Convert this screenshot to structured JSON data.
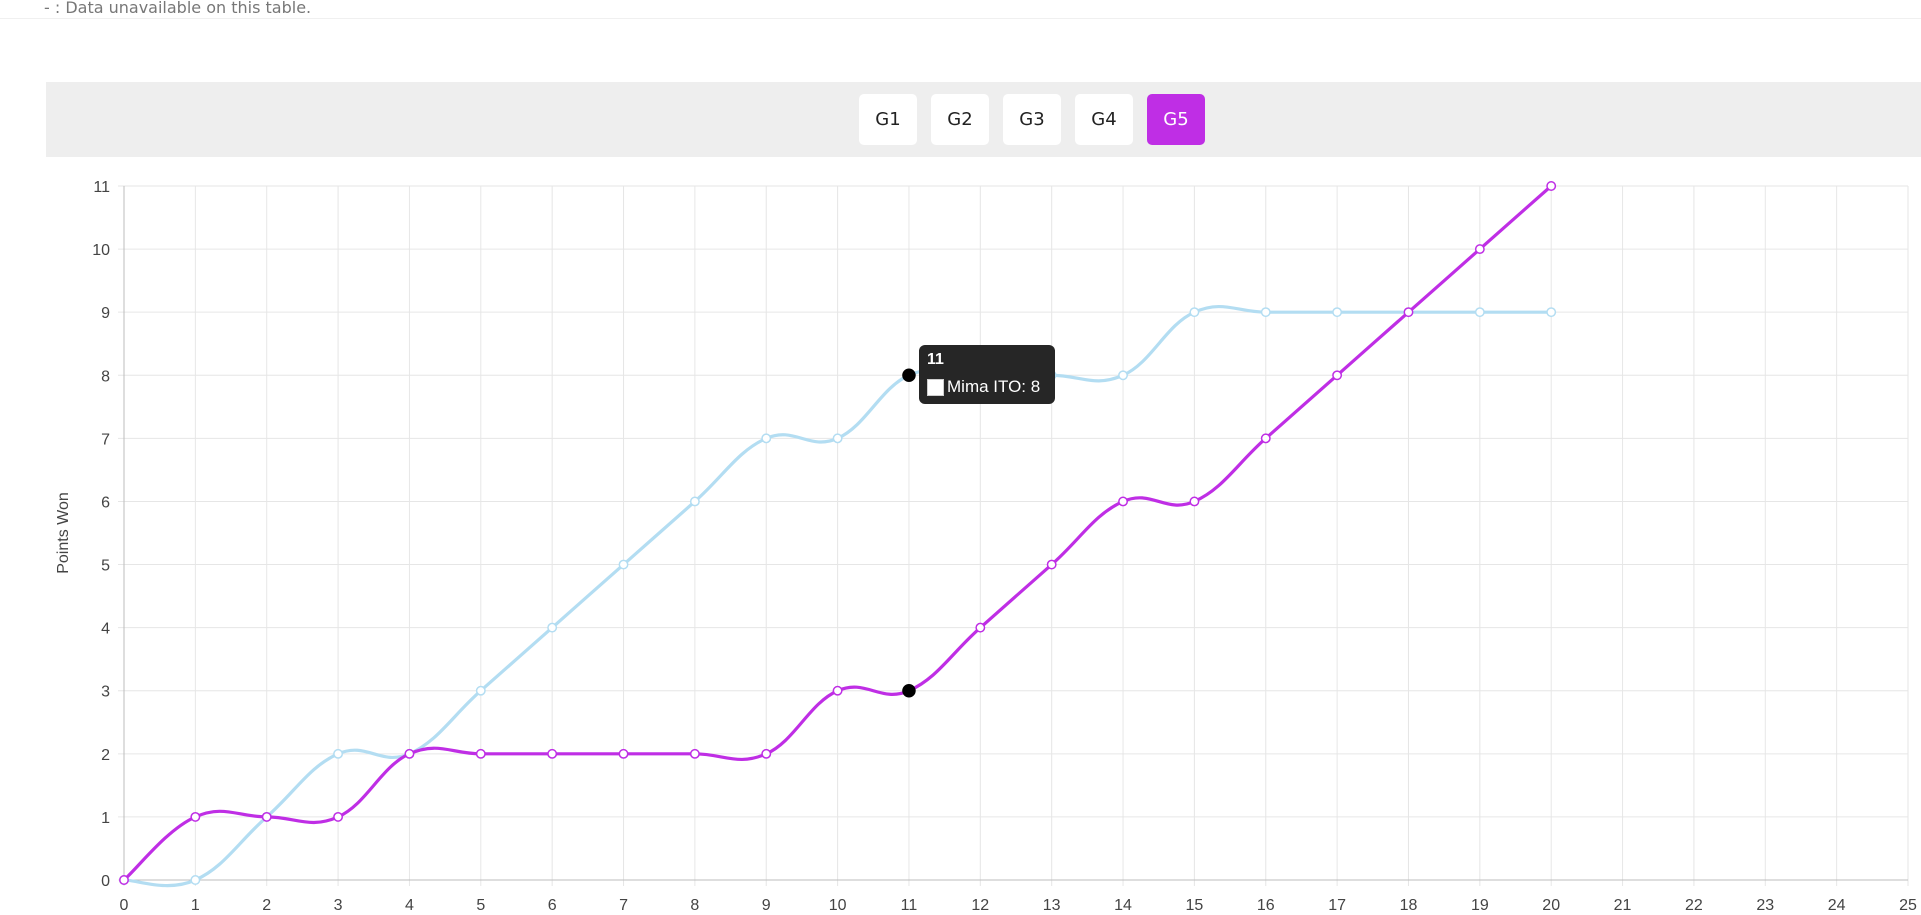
{
  "note": {
    "text": "- : Data unavailable on this table."
  },
  "games": {
    "tabs": [
      "G1",
      "G2",
      "G3",
      "G4",
      "G5"
    ],
    "active_index": 4,
    "active_color": "#bf2ee5"
  },
  "tooltip": {
    "title": "11",
    "label": "Mima ITO: 8"
  },
  "chart_data": {
    "type": "line",
    "ylabel": "Points Won",
    "xlabel": "",
    "xlim": [
      0,
      25
    ],
    "ylim": [
      0,
      11
    ],
    "x_ticks": [
      0,
      1,
      2,
      3,
      4,
      5,
      6,
      7,
      8,
      9,
      10,
      11,
      12,
      13,
      14,
      15,
      16,
      17,
      18,
      19,
      20,
      21,
      22,
      23,
      24,
      25
    ],
    "y_ticks": [
      0,
      1,
      2,
      3,
      4,
      5,
      6,
      7,
      8,
      9,
      10,
      11
    ],
    "grid": true,
    "highlight_x": 11,
    "series": [
      {
        "name": "Mima ITO",
        "color": "#b3ddf2",
        "x": [
          0,
          1,
          2,
          3,
          4,
          5,
          6,
          7,
          8,
          9,
          10,
          11,
          12,
          13,
          14,
          15,
          16,
          17,
          18,
          19,
          20
        ],
        "values": [
          0,
          0,
          1,
          2,
          2,
          3,
          4,
          5,
          6,
          7,
          7,
          8,
          8,
          8,
          8,
          9,
          9,
          9,
          9,
          9,
          9
        ]
      },
      {
        "color": "#bf2ee5",
        "x": [
          0,
          1,
          2,
          3,
          4,
          5,
          6,
          7,
          8,
          9,
          10,
          11,
          12,
          13,
          14,
          15,
          16,
          17,
          18,
          19,
          20
        ],
        "values": [
          0,
          1,
          1,
          1,
          2,
          2,
          2,
          2,
          2,
          2,
          3,
          3,
          4,
          5,
          6,
          6,
          7,
          8,
          9,
          10,
          11
        ]
      }
    ]
  }
}
